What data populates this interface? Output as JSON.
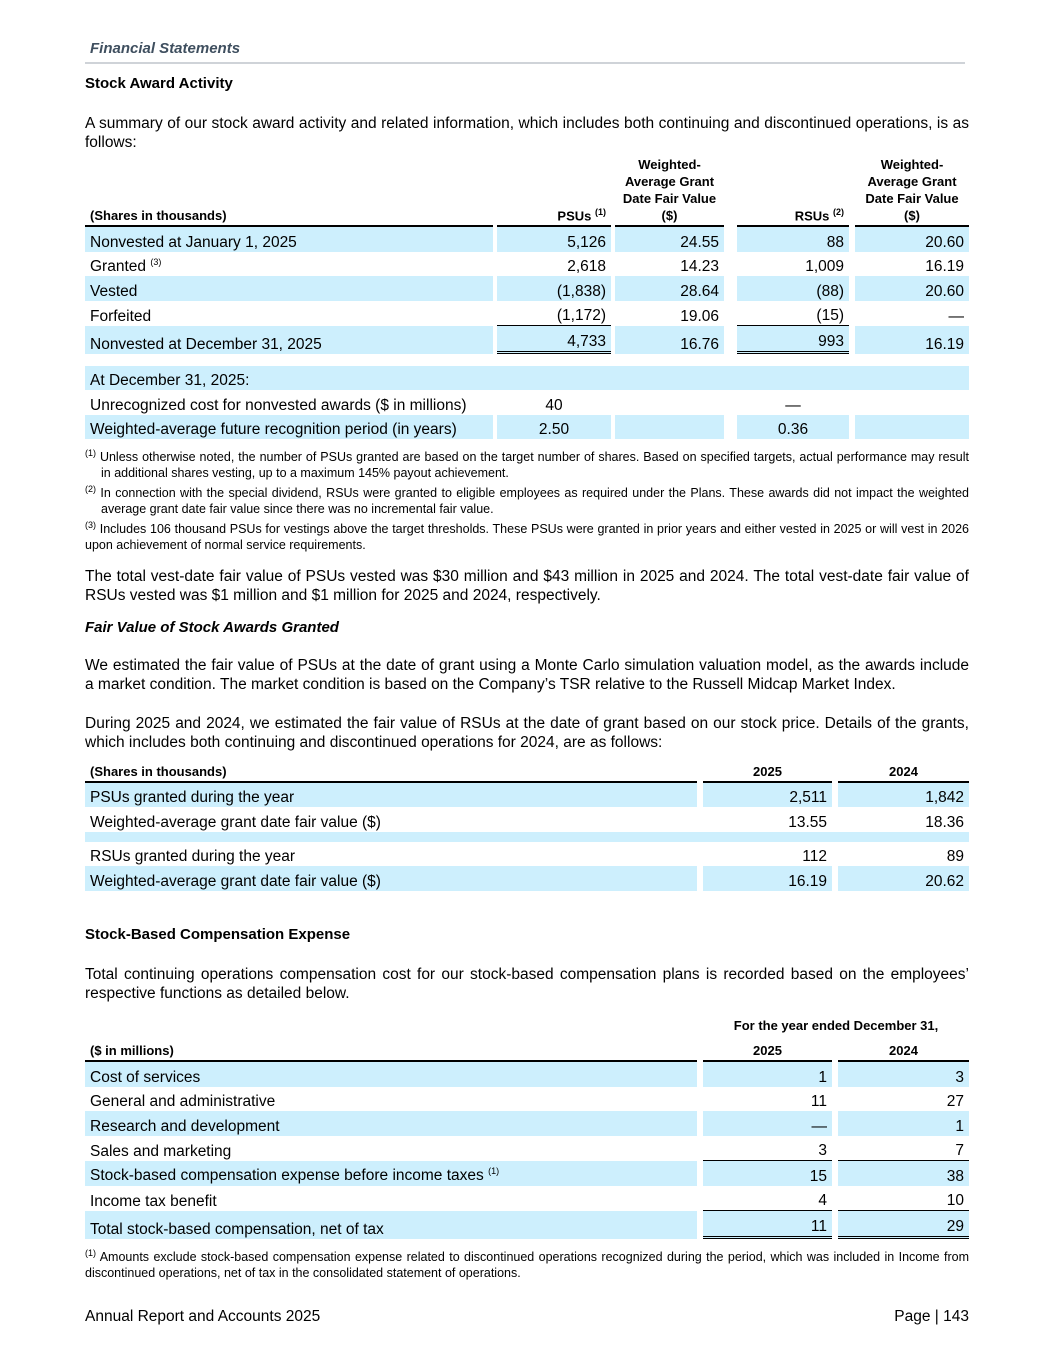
{
  "header": {
    "section": "Financial Statements"
  },
  "s1": {
    "title": "Stock Award Activity",
    "intro": "A summary of our stock award activity and related information, which includes both continuing and discontinued operations, is as follows:",
    "table": {
      "headers": [
        "(Shares in thousands)",
        "PSUs",
        "Weighted-Average Grant Date Fair Value ($)",
        "RSUs",
        "Weighted-Average Grant Date Fair Value ($)"
      ],
      "header_notes": {
        "psus": "(1)",
        "rsus": "(2)"
      },
      "rows": [
        {
          "label": "Nonvested at January 1, 2025",
          "note": "",
          "psus": "5,126",
          "psu_fv": "24.55",
          "rsus": "88",
          "rsu_fv": "20.60"
        },
        {
          "label": "Granted",
          "note": "(3)",
          "psus": "2,618",
          "psu_fv": "14.23",
          "rsus": "1,009",
          "rsu_fv": "16.19"
        },
        {
          "label": "Vested",
          "note": "",
          "psus": "(1,838)",
          "psu_fv": "28.64",
          "rsus": "(88)",
          "rsu_fv": "20.60"
        },
        {
          "label": "Forfeited",
          "note": "",
          "psus": "(1,172)",
          "psu_fv": "19.06",
          "rsus": "(15)",
          "rsu_fv": "—"
        },
        {
          "label": "Nonvested at December 31, 2025",
          "note": "",
          "psus": "4,733",
          "psu_fv": "16.76",
          "rsus": "993",
          "rsu_fv": "16.19"
        }
      ],
      "sub_header": "At December 31, 2025:",
      "sub_rows": [
        {
          "label": "Unrecognized cost for nonvested awards ($ in millions)",
          "psus": "40",
          "rsus": "—"
        },
        {
          "label": "Weighted-average future recognition period (in years)",
          "psus": "2.50",
          "rsus": "0.36"
        }
      ]
    },
    "footnotes": [
      {
        "mark": "(1)",
        "text": "Unless otherwise noted, the number of PSUs granted are based on the target number of shares. Based on specified targets, actual performance may result in additional shares vesting, up to a maximum 145% payout achievement."
      },
      {
        "mark": "(2)",
        "text": "In connection with the special dividend, RSUs were granted to eligible employees as required under the Plans. These awards did not impact the weighted average grant date fair value since there was no incremental fair value."
      },
      {
        "mark": "(3)",
        "text": "Includes 106 thousand PSUs for vestings above the target thresholds. These PSUs were granted in prior years and either vested in 2025 or will vest in 2026 upon achievement of normal service requirements."
      }
    ],
    "after": "The total vest-date fair value of PSUs vested was $30 million and $43 million in 2025 and 2024. The total vest-date fair value of RSUs vested was $1 million and $1 million for 2025 and 2024, respectively."
  },
  "s2": {
    "title": "Fair Value of Stock Awards Granted",
    "p1": "We estimated the fair value of PSUs at the date of grant using a Monte Carlo simulation valuation model, as the awards include a market condition. The market condition is based on the Company’s TSR relative to the Russell Midcap Market Index.",
    "p2": "During 2025 and 2024, we estimated the fair value of RSUs at the date of grant based on our stock price. Details of the grants, which includes both continuing and discontinued operations for 2024, are as follows:",
    "table": {
      "headers": [
        "(Shares in thousands)",
        "2025",
        "2024"
      ],
      "rows": [
        {
          "label": "PSUs granted during the year",
          "y2025": "2,511",
          "y2024": "1,842"
        },
        {
          "label": "Weighted-average grant date fair value ($)",
          "y2025": "13.55",
          "y2024": "18.36"
        },
        {
          "label": "RSUs granted during the year",
          "y2025": "112",
          "y2024": "89"
        },
        {
          "label": "Weighted-average grant date fair value ($)",
          "y2025": "16.19",
          "y2024": "20.62"
        }
      ]
    }
  },
  "s3": {
    "title": "Stock-Based Compensation Expense",
    "p1": "Total continuing operations compensation cost for our stock-based compensation plans is recorded based on the employees’ respective functions as detailed below.",
    "table": {
      "period": "For the year ended December 31,",
      "headers": [
        "($ in millions)",
        "2025",
        "2024"
      ],
      "rows": [
        {
          "label": "Cost of services",
          "note": "",
          "y2025": "1",
          "y2024": "3"
        },
        {
          "label": "General and administrative",
          "note": "",
          "y2025": "11",
          "y2024": "27"
        },
        {
          "label": "Research and development",
          "note": "",
          "y2025": "—",
          "y2024": "1"
        },
        {
          "label": "Sales and marketing",
          "note": "",
          "y2025": "3",
          "y2024": "7"
        },
        {
          "label": "Stock-based compensation expense before income taxes",
          "note": "(1)",
          "y2025": "15",
          "y2024": "38"
        },
        {
          "label": "Income tax benefit",
          "note": "",
          "y2025": "4",
          "y2024": "10"
        },
        {
          "label": "Total stock-based compensation, net of tax",
          "note": "",
          "y2025": "11",
          "y2024": "29"
        }
      ]
    },
    "footnote": {
      "mark": "(1)",
      "text": "Amounts exclude stock-based compensation expense related to discontinued operations recognized during the period, which was included in Income from discontinued operations, net of tax in the consolidated statement of operations."
    }
  },
  "footer": {
    "left": "Annual Report and Accounts 2025",
    "right": "Page | 143"
  },
  "colors": {
    "row_shade": "#cdeffd",
    "header_text": "#3f4f5f"
  }
}
